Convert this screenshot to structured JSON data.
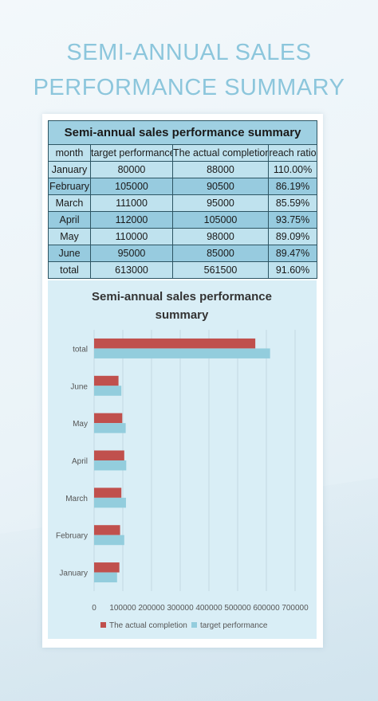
{
  "page": {
    "title_line1": "SEMI-ANNUAL SALES",
    "title_line2": "PERFORMANCE SUMMARY"
  },
  "table": {
    "title": "Semi-annual sales performance summary",
    "headers": [
      "month",
      "target performance",
      "The actual completion",
      "reach ratio"
    ],
    "rows": [
      [
        "January",
        "80000",
        "88000",
        "110.00%"
      ],
      [
        "February",
        "105000",
        "90500",
        "86.19%"
      ],
      [
        "March",
        "111000",
        "95000",
        "85.59%"
      ],
      [
        "April",
        "112000",
        "105000",
        "93.75%"
      ],
      [
        "May",
        "110000",
        "98000",
        "89.09%"
      ],
      [
        "June",
        "95000",
        "85000",
        "89.47%"
      ],
      [
        "total",
        "613000",
        "561500",
        "91.60%"
      ]
    ]
  },
  "chart_data": {
    "type": "bar",
    "orientation": "horizontal",
    "title_line1": "Semi-annual sales performance",
    "title_line2": "summary",
    "categories": [
      "January",
      "February",
      "March",
      "April",
      "May",
      "June",
      "total"
    ],
    "series": [
      {
        "name": "The actual completion",
        "color": "#c0504d",
        "values": [
          88000,
          90500,
          95000,
          105000,
          98000,
          85000,
          561500
        ]
      },
      {
        "name": "target performance",
        "color": "#93cddd",
        "values": [
          80000,
          105000,
          111000,
          112000,
          110000,
          95000,
          613000
        ]
      }
    ],
    "xlim": [
      0,
      700000
    ],
    "xticks": [
      "0",
      "100000",
      "200000",
      "300000",
      "400000",
      "500000",
      "600000",
      "700000"
    ],
    "grid": "vertical",
    "legend": "bottom"
  }
}
